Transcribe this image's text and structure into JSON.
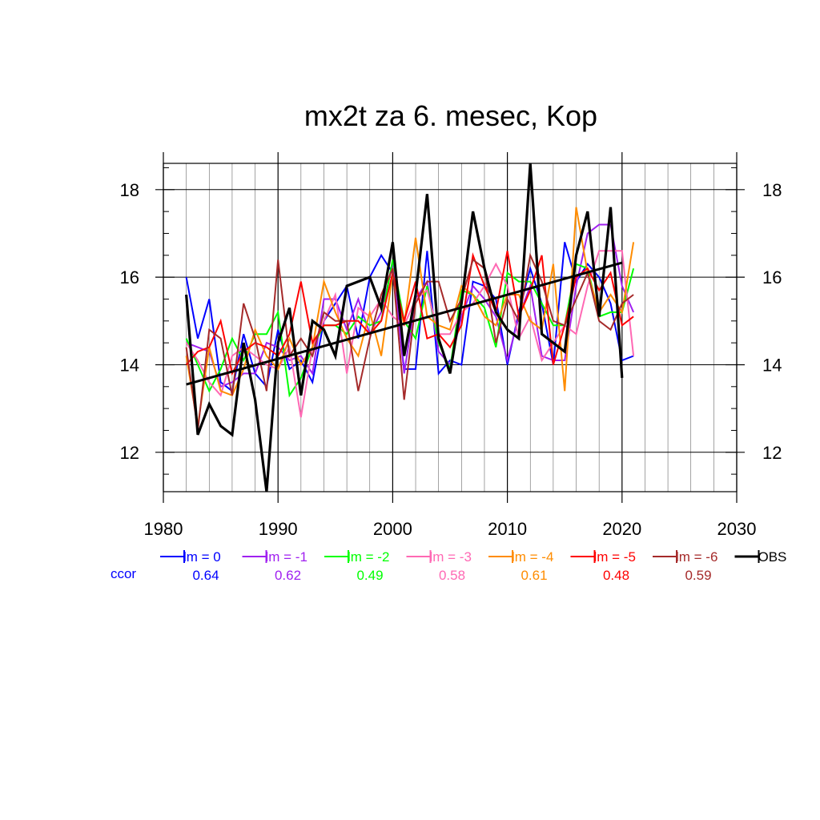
{
  "chart_data": {
    "type": "line",
    "title": "mx2t za 6. mesec, Kop",
    "xlabel": "",
    "ylabel": "",
    "xlim": [
      1980,
      2030
    ],
    "ylim": [
      11.1,
      18.6
    ],
    "x_ticks": [
      1980,
      1990,
      2000,
      2010,
      2020,
      2030
    ],
    "y_ticks": [
      12,
      14,
      16,
      18
    ],
    "grid": true,
    "legend_placement": "bottom",
    "ccor_label": "ccor",
    "series": [
      {
        "name": "lm = 0",
        "color": "#0000ff",
        "ccor": "0.64",
        "x": [
          1982,
          1983,
          1984,
          1985,
          1986,
          1987,
          1988,
          1989,
          1990,
          1991,
          1992,
          1993,
          1994,
          1995,
          1996,
          1997,
          1998,
          1999,
          2000,
          2001,
          2002,
          2003,
          2004,
          2005,
          2006,
          2007,
          2008,
          2009,
          2010,
          2011,
          2012,
          2013,
          2014,
          2015,
          2016,
          2017,
          2018,
          2019,
          2020,
          2021
        ],
        "y": [
          16.0,
          14.6,
          15.5,
          13.6,
          13.4,
          14.7,
          13.8,
          13.5,
          14.8,
          13.9,
          14.1,
          13.6,
          15.0,
          15.4,
          15.8,
          14.6,
          16.0,
          16.5,
          16.1,
          13.9,
          13.9,
          16.6,
          13.8,
          14.1,
          14.0,
          15.9,
          15.8,
          15.5,
          14.0,
          15.2,
          16.2,
          15.4,
          14.0,
          16.8,
          15.9,
          16.3,
          16.0,
          15.4,
          14.1,
          14.2
        ]
      },
      {
        "name": "lm = -1",
        "color": "#a020f0",
        "ccor": "0.62",
        "x": [
          1982,
          1983,
          1984,
          1985,
          1986,
          1987,
          1988,
          1989,
          1990,
          1991,
          1992,
          1993,
          1994,
          1995,
          1996,
          1997,
          1998,
          1999,
          2000,
          2001,
          2002,
          2003,
          2004,
          2005,
          2006,
          2007,
          2008,
          2009,
          2010,
          2011,
          2012,
          2013,
          2014,
          2015,
          2016,
          2017,
          2018,
          2019,
          2020,
          2021
        ],
        "y": [
          14.5,
          14.4,
          14.3,
          13.5,
          13.6,
          13.8,
          13.8,
          14.5,
          14.4,
          14.1,
          14.2,
          13.8,
          15.5,
          15.5,
          14.8,
          15.5,
          14.7,
          15.2,
          16.3,
          13.8,
          15.5,
          15.9,
          14.3,
          14.0,
          15.1,
          15.8,
          15.5,
          15.1,
          14.1,
          15.1,
          15.8,
          14.2,
          14.1,
          14.1,
          15.8,
          17.0,
          17.2,
          17.2,
          15.8,
          15.2
        ]
      },
      {
        "name": "lm = -2",
        "color": "#00ff00",
        "ccor": "0.49",
        "x": [
          1982,
          1983,
          1984,
          1985,
          1986,
          1987,
          1988,
          1989,
          1990,
          1991,
          1992,
          1993,
          1994,
          1995,
          1996,
          1997,
          1998,
          1999,
          2000,
          2001,
          2002,
          2003,
          2004,
          2005,
          2006,
          2007,
          2008,
          2009,
          2010,
          2011,
          2012,
          2013,
          2014,
          2015,
          2016,
          2017,
          2018,
          2019,
          2020,
          2021
        ],
        "y": [
          14.6,
          14.0,
          13.4,
          13.9,
          14.6,
          14.1,
          14.7,
          14.7,
          15.2,
          13.3,
          13.7,
          14.4,
          14.9,
          14.9,
          14.7,
          15.1,
          14.9,
          15.0,
          16.4,
          15.0,
          14.6,
          15.8,
          14.5,
          13.9,
          15.7,
          15.6,
          15.3,
          14.4,
          16.1,
          15.9,
          15.9,
          15.4,
          14.9,
          14.9,
          16.3,
          16.2,
          15.1,
          15.2,
          15.2,
          16.2
        ]
      },
      {
        "name": "lm = -3",
        "color": "#ff69b4",
        "ccor": "0.58",
        "x": [
          1982,
          1983,
          1984,
          1985,
          1986,
          1987,
          1988,
          1989,
          1990,
          1991,
          1992,
          1993,
          1994,
          1995,
          1996,
          1997,
          1998,
          1999,
          2000,
          2001,
          2002,
          2003,
          2004,
          2005,
          2006,
          2007,
          2008,
          2009,
          2010,
          2011,
          2012,
          2013,
          2014,
          2015,
          2016,
          2017,
          2018,
          2019,
          2020,
          2021
        ],
        "y": [
          14.5,
          14.1,
          13.6,
          13.3,
          14.2,
          14.4,
          14.2,
          14.0,
          13.9,
          14.4,
          12.8,
          14.4,
          15.0,
          15.6,
          13.8,
          15.3,
          15.1,
          15.5,
          15.1,
          14.9,
          15.5,
          15.7,
          14.7,
          14.7,
          15.2,
          15.4,
          15.8,
          16.3,
          15.8,
          14.6,
          15.1,
          14.1,
          14.5,
          14.9,
          14.7,
          15.8,
          16.6,
          16.6,
          16.6,
          14.2
        ]
      },
      {
        "name": "lm = -4",
        "color": "#ff8c00",
        "ccor": "0.61",
        "x": [
          1982,
          1983,
          1984,
          1985,
          1986,
          1987,
          1988,
          1989,
          1990,
          1991,
          1992,
          1993,
          1994,
          1995,
          1996,
          1997,
          1998,
          1999,
          2000,
          2001,
          2002,
          2003,
          2004,
          2005,
          2006,
          2007,
          2008,
          2009,
          2010,
          2011,
          2012,
          2013,
          2014,
          2015,
          2016,
          2017,
          2018,
          2019,
          2020,
          2021
        ],
        "y": [
          14.2,
          12.6,
          14.4,
          13.4,
          13.3,
          13.9,
          14.8,
          14.2,
          13.9,
          14.6,
          14.0,
          14.4,
          15.9,
          15.2,
          14.6,
          14.2,
          15.2,
          14.2,
          16.1,
          14.9,
          16.9,
          15.1,
          14.9,
          14.8,
          15.8,
          15.6,
          15.1,
          14.9,
          15.6,
          15.6,
          15.0,
          14.8,
          16.3,
          13.4,
          17.6,
          16.1,
          15.2,
          15.6,
          15.2,
          16.8
        ]
      },
      {
        "name": "lm = -5",
        "color": "#ff0000",
        "ccor": "0.48",
        "x": [
          1982,
          1983,
          1984,
          1985,
          1986,
          1987,
          1988,
          1989,
          1990,
          1991,
          1992,
          1993,
          1994,
          1995,
          1996,
          1997,
          1998,
          1999,
          2000,
          2001,
          2002,
          2003,
          2004,
          2005,
          2006,
          2007,
          2008,
          2009,
          2010,
          2011,
          2012,
          2013,
          2014,
          2015,
          2016,
          2017,
          2018,
          2019,
          2020,
          2021
        ],
        "y": [
          14.0,
          14.3,
          14.4,
          15.0,
          13.8,
          14.3,
          14.5,
          14.4,
          14.2,
          14.7,
          15.9,
          14.5,
          14.9,
          14.9,
          15.0,
          15.0,
          14.7,
          15.0,
          16.1,
          15.0,
          15.9,
          14.6,
          14.7,
          14.4,
          14.9,
          16.5,
          15.8,
          15.2,
          16.6,
          15.1,
          15.7,
          16.5,
          14.0,
          14.9,
          16.0,
          16.2,
          15.7,
          16.1,
          14.9,
          15.1
        ]
      },
      {
        "name": "lm = -6",
        "color": "#a52a2a",
        "ccor": "0.59",
        "x": [
          1982,
          1983,
          1984,
          1985,
          1986,
          1987,
          1988,
          1989,
          1990,
          1991,
          1992,
          1993,
          1994,
          1995,
          1996,
          1997,
          1998,
          1999,
          2000,
          2001,
          2002,
          2003,
          2004,
          2005,
          2006,
          2007,
          2008,
          2009,
          2010,
          2011,
          2012,
          2013,
          2014,
          2015,
          2016,
          2017,
          2018,
          2019,
          2020,
          2021
        ],
        "y": [
          14.4,
          12.5,
          14.8,
          14.6,
          13.3,
          15.4,
          14.6,
          13.4,
          16.4,
          14.2,
          14.6,
          14.2,
          15.2,
          15.0,
          15.0,
          13.4,
          14.6,
          15.6,
          16.2,
          13.2,
          15.4,
          15.9,
          15.9,
          15.0,
          15.5,
          16.4,
          16.2,
          14.5,
          15.5,
          15.0,
          16.5,
          15.9,
          15.0,
          14.9,
          15.5,
          16.1,
          15.0,
          14.8,
          15.4,
          15.6
        ]
      },
      {
        "name": "OBS",
        "color": "#000000",
        "ccor": "",
        "x": [
          1982,
          1983,
          1984,
          1985,
          1986,
          1987,
          1988,
          1989,
          1990,
          1991,
          1992,
          1993,
          1994,
          1995,
          1996,
          1997,
          1998,
          1999,
          2000,
          2001,
          2002,
          2003,
          2004,
          2005,
          2006,
          2007,
          2008,
          2009,
          2010,
          2011,
          2012,
          2013,
          2014,
          2015,
          2016,
          2017,
          2018,
          2019,
          2020
        ],
        "y": [
          15.6,
          12.4,
          13.1,
          12.6,
          12.4,
          14.5,
          13.2,
          11.1,
          14.5,
          15.3,
          13.3,
          15.0,
          14.8,
          14.2,
          15.8,
          15.9,
          16.0,
          15.3,
          16.8,
          14.2,
          15.6,
          17.9,
          14.6,
          13.8,
          15.4,
          17.5,
          16.2,
          15.2,
          14.8,
          14.6,
          18.6,
          14.7,
          14.5,
          14.3,
          16.5,
          17.5,
          15.1,
          17.6,
          13.7
        ]
      }
    ],
    "trend": {
      "x": [
        1982,
        2020
      ],
      "y": [
        13.55,
        16.33
      ],
      "color": "#000000"
    }
  }
}
